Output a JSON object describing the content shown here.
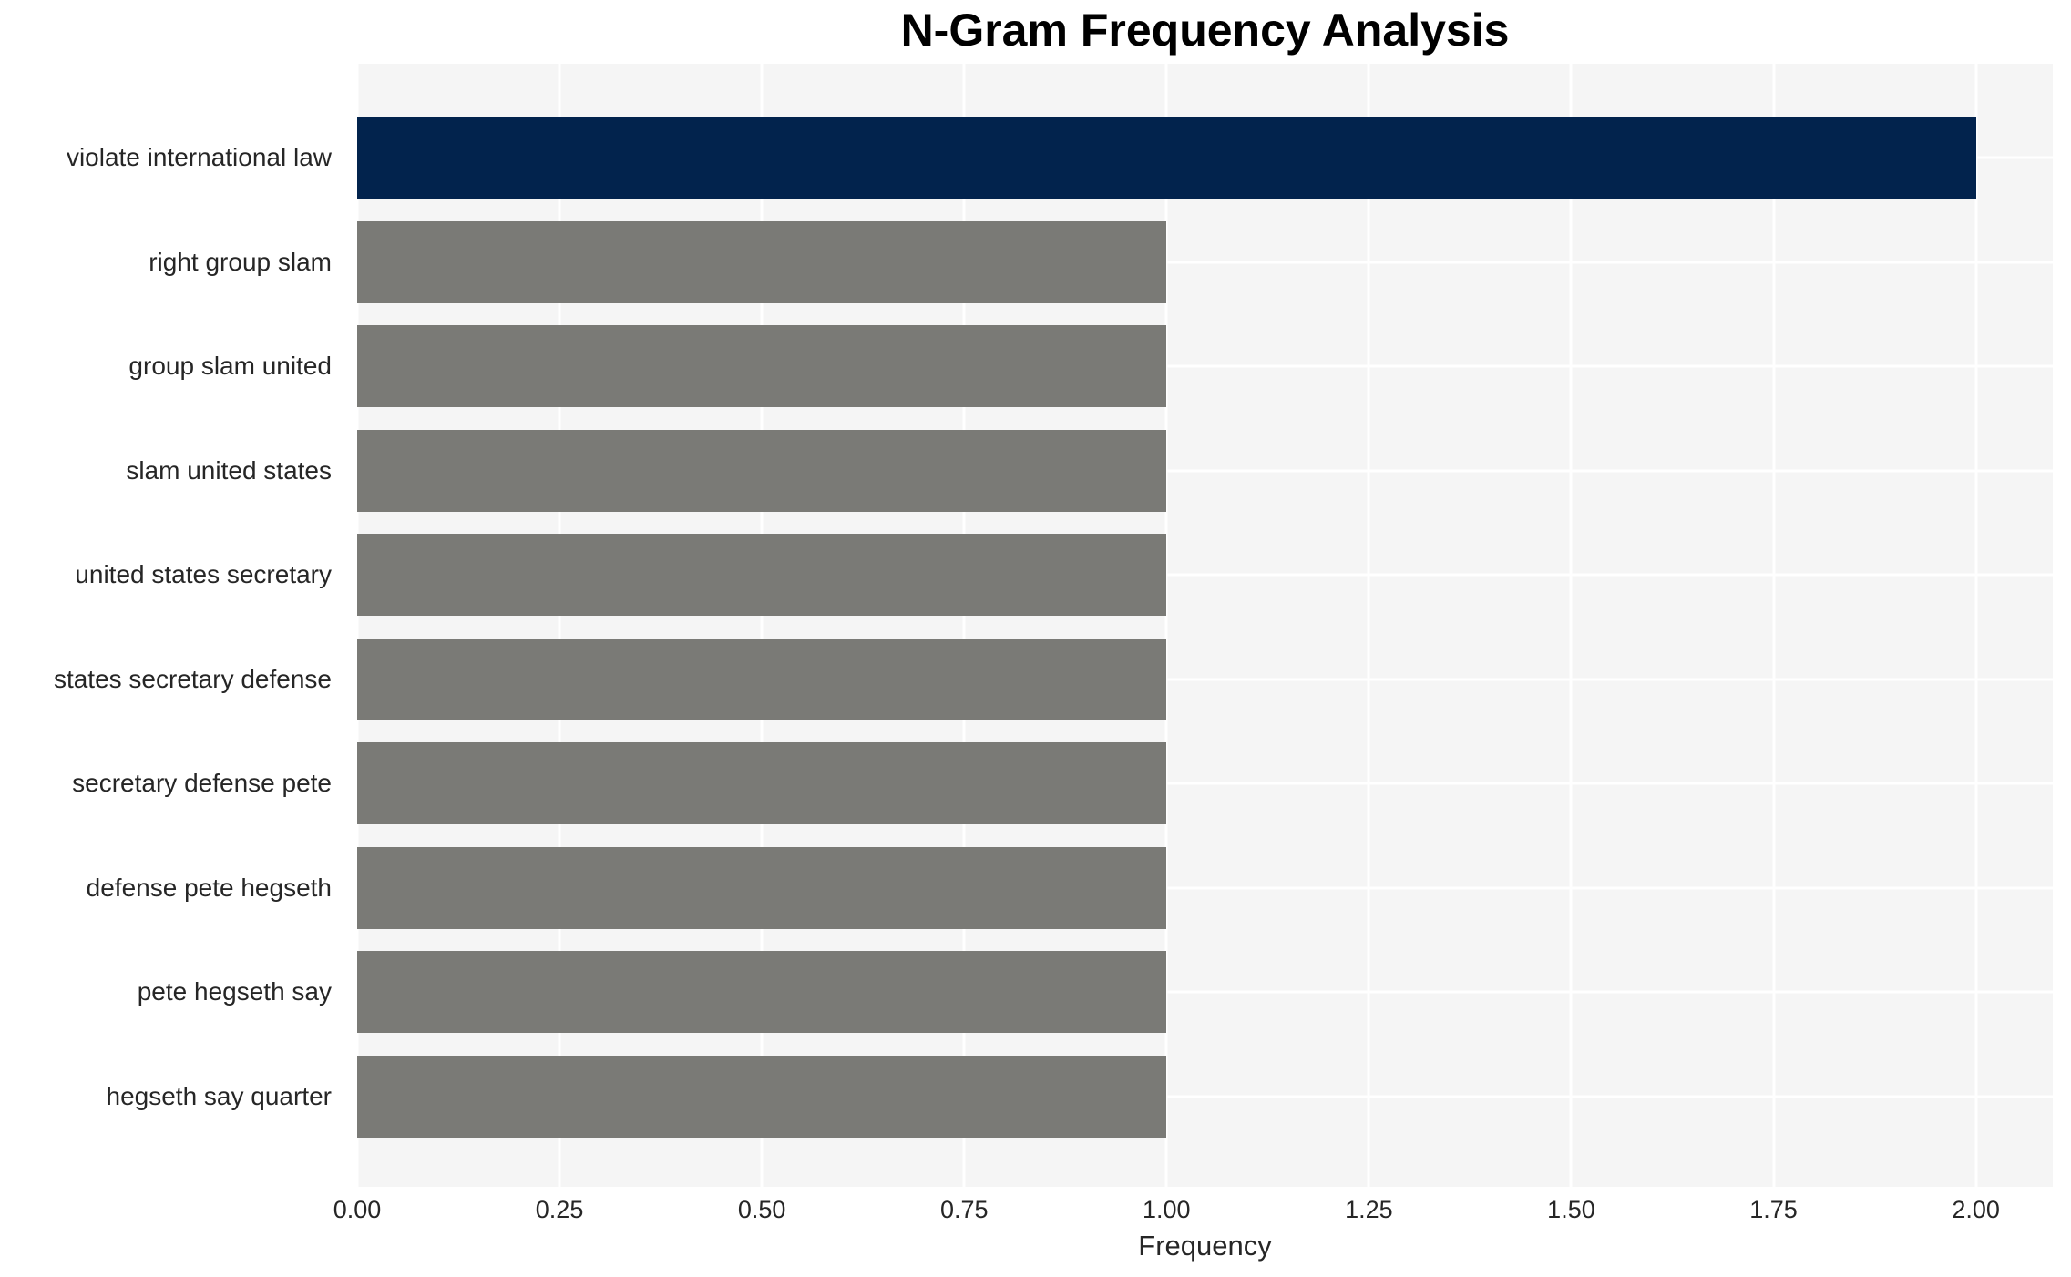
{
  "chart_data": {
    "type": "bar",
    "orientation": "horizontal",
    "title": "N-Gram Frequency Analysis",
    "xlabel": "Frequency",
    "ylabel": "",
    "categories": [
      "violate international law",
      "right group slam",
      "group slam united",
      "slam united states",
      "united states secretary",
      "states secretary defense",
      "secretary defense pete",
      "defense pete hegseth",
      "pete hegseth say",
      "hegseth say quarter"
    ],
    "values": [
      2.0,
      1.0,
      1.0,
      1.0,
      1.0,
      1.0,
      1.0,
      1.0,
      1.0,
      1.0
    ],
    "bar_colors": [
      "#02234d",
      "#7a7a76",
      "#7a7a76",
      "#7a7a76",
      "#7a7a76",
      "#7a7a76",
      "#7a7a76",
      "#7a7a76",
      "#7a7a76",
      "#7a7a76"
    ],
    "xticks": [
      {
        "value": 0.0,
        "label": "0.00"
      },
      {
        "value": 0.25,
        "label": "0.25"
      },
      {
        "value": 0.5,
        "label": "0.50"
      },
      {
        "value": 0.75,
        "label": "0.75"
      },
      {
        "value": 1.0,
        "label": "1.00"
      },
      {
        "value": 1.25,
        "label": "1.25"
      },
      {
        "value": 1.5,
        "label": "1.50"
      },
      {
        "value": 1.75,
        "label": "1.75"
      },
      {
        "value": 2.0,
        "label": "2.00"
      }
    ],
    "xlim": [
      0,
      2.095
    ],
    "grid": true,
    "legend_position": "none",
    "colors": {
      "plot_background": "#f5f5f5",
      "grid_line": "#ffffff",
      "tick_text": "#262626",
      "title_text": "#000000"
    }
  }
}
